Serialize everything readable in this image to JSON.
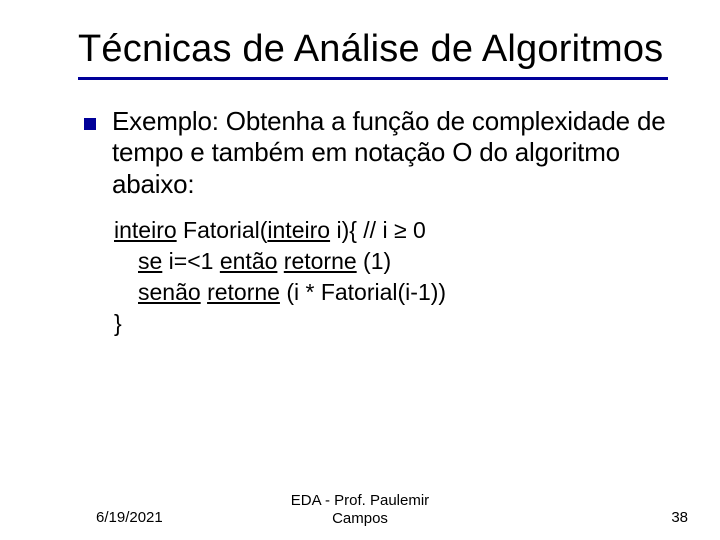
{
  "title": "Técnicas de Análise de Algoritmos",
  "bullet_text": "Exemplo: Obtenha a função de complexidade de tempo e também em notação O do algoritmo abaixo:",
  "code": {
    "l1a": "inteiro",
    "l1b": " Fatorial(",
    "l1c": "inteiro",
    "l1d": " i){   // i ",
    "l1e": "≥",
    "l1f": " 0",
    "l2a": "se",
    "l2b": " i=<1 ",
    "l2c": "então",
    "l2d": " ",
    "l2e": "retorne",
    "l2f": " (1)",
    "l3a": "senão",
    "l3b": " ",
    "l3c": "retorne",
    "l3d": " (i * Fatorial(i-1))",
    "l4": "}"
  },
  "footer": {
    "date": "6/19/2021",
    "center_l1": "EDA - Prof. Paulemir",
    "center_l2": "Campos",
    "page": "38"
  },
  "colors": {
    "accent": "#000099",
    "text": "#000000",
    "bg": "#ffffff"
  }
}
